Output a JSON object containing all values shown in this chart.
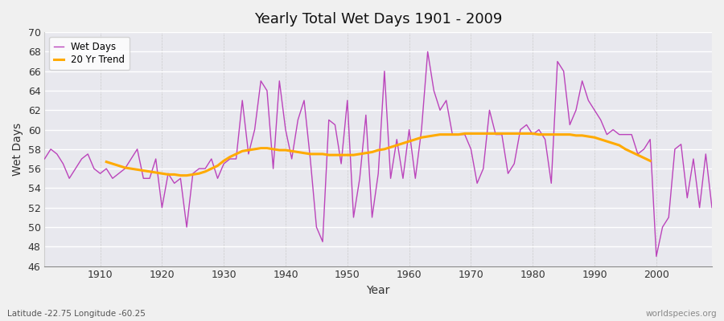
{
  "title": "Yearly Total Wet Days 1901 - 2009",
  "xlabel": "Year",
  "ylabel": "Wet Days",
  "footnote_left": "Latitude -22.75 Longitude -60.25",
  "footnote_right": "worldspecies.org",
  "legend_wet": "Wet Days",
  "legend_trend": "20 Yr Trend",
  "wet_color": "#bb44bb",
  "trend_color": "#ffaa00",
  "bg_color": "#f0f0f0",
  "plot_bg_color": "#e8e8ee",
  "ylim": [
    46,
    70
  ],
  "xlim": [
    1901,
    2009
  ],
  "yticks": [
    46,
    48,
    50,
    52,
    54,
    56,
    58,
    60,
    62,
    64,
    66,
    68,
    70
  ],
  "years": [
    1901,
    1902,
    1903,
    1904,
    1905,
    1906,
    1907,
    1908,
    1909,
    1910,
    1911,
    1912,
    1913,
    1914,
    1915,
    1916,
    1917,
    1918,
    1919,
    1920,
    1921,
    1922,
    1923,
    1924,
    1925,
    1926,
    1927,
    1928,
    1929,
    1930,
    1931,
    1932,
    1933,
    1934,
    1935,
    1936,
    1937,
    1938,
    1939,
    1940,
    1941,
    1942,
    1943,
    1944,
    1945,
    1946,
    1947,
    1948,
    1949,
    1950,
    1951,
    1952,
    1953,
    1954,
    1955,
    1956,
    1957,
    1958,
    1959,
    1960,
    1961,
    1962,
    1963,
    1964,
    1965,
    1966,
    1967,
    1968,
    1969,
    1970,
    1971,
    1972,
    1973,
    1974,
    1975,
    1976,
    1977,
    1978,
    1979,
    1980,
    1981,
    1982,
    1983,
    1984,
    1985,
    1986,
    1987,
    1988,
    1989,
    1990,
    1991,
    1992,
    1993,
    1994,
    1995,
    1996,
    1997,
    1998,
    1999,
    2000,
    2001,
    2002,
    2003,
    2004,
    2005,
    2006,
    2007,
    2008,
    2009
  ],
  "wet_days": [
    57,
    58,
    57.5,
    56.5,
    55,
    56,
    57,
    57.5,
    56,
    55.5,
    56,
    55,
    55.5,
    56,
    57,
    58,
    55,
    55,
    57,
    52,
    55.5,
    54.5,
    55,
    50,
    55.5,
    56,
    56,
    57,
    55,
    56.5,
    57,
    57,
    63,
    57.5,
    60,
    65,
    64,
    56,
    65,
    60,
    57,
    61,
    63,
    57,
    50,
    48.5,
    61,
    60.5,
    56.5,
    63,
    51,
    55,
    61.5,
    51,
    55.5,
    66,
    55,
    59,
    55,
    60,
    55,
    60,
    68,
    64,
    62,
    63,
    59.5,
    59.5,
    59.5,
    58,
    54.5,
    56,
    62,
    59.5,
    59.5,
    55.5,
    56.5,
    60,
    60.5,
    59.5,
    60,
    59,
    54.5,
    67,
    66,
    60.5,
    62,
    65,
    63,
    62,
    61,
    59.5,
    60,
    59.5,
    59.5,
    59.5,
    57.5,
    58,
    59,
    47,
    50,
    51,
    58,
    58.5,
    53,
    57,
    52,
    57.5,
    52
  ],
  "trend_years": [
    1911,
    1912,
    1913,
    1914,
    1915,
    1916,
    1917,
    1918,
    1919,
    1920,
    1921,
    1922,
    1923,
    1924,
    1925,
    1926,
    1927,
    1928,
    1929,
    1930,
    1931,
    1932,
    1933,
    1934,
    1935,
    1936,
    1937,
    1938,
    1939,
    1940,
    1941,
    1942,
    1943,
    1944,
    1945,
    1946,
    1947,
    1948,
    1949,
    1950,
    1951,
    1952,
    1953,
    1954,
    1955,
    1956,
    1957,
    1958,
    1959,
    1960,
    1961,
    1962,
    1963,
    1964,
    1965,
    1966,
    1967,
    1968,
    1969,
    1970,
    1971,
    1972,
    1973,
    1974,
    1975,
    1976,
    1977,
    1978,
    1979,
    1980,
    1981,
    1982,
    1983,
    1984,
    1985,
    1986,
    1987,
    1988,
    1989,
    1990,
    1991,
    1992,
    1993,
    1994,
    1995,
    1996,
    1997,
    1998,
    1999
  ],
  "trend_values": [
    56.7,
    56.5,
    56.3,
    56.1,
    56.0,
    55.9,
    55.8,
    55.7,
    55.6,
    55.5,
    55.4,
    55.4,
    55.3,
    55.3,
    55.4,
    55.5,
    55.7,
    56.0,
    56.3,
    56.8,
    57.2,
    57.5,
    57.8,
    57.9,
    58.0,
    58.1,
    58.1,
    58.0,
    57.9,
    57.9,
    57.8,
    57.7,
    57.6,
    57.5,
    57.5,
    57.5,
    57.4,
    57.4,
    57.4,
    57.4,
    57.4,
    57.5,
    57.6,
    57.7,
    57.9,
    58.0,
    58.2,
    58.4,
    58.6,
    58.8,
    59.0,
    59.2,
    59.3,
    59.4,
    59.5,
    59.5,
    59.5,
    59.5,
    59.6,
    59.6,
    59.6,
    59.6,
    59.6,
    59.6,
    59.6,
    59.6,
    59.6,
    59.6,
    59.6,
    59.6,
    59.5,
    59.5,
    59.5,
    59.5,
    59.5,
    59.5,
    59.4,
    59.4,
    59.3,
    59.2,
    59.0,
    58.8,
    58.6,
    58.4,
    58.0,
    57.7,
    57.4,
    57.1,
    56.8
  ]
}
